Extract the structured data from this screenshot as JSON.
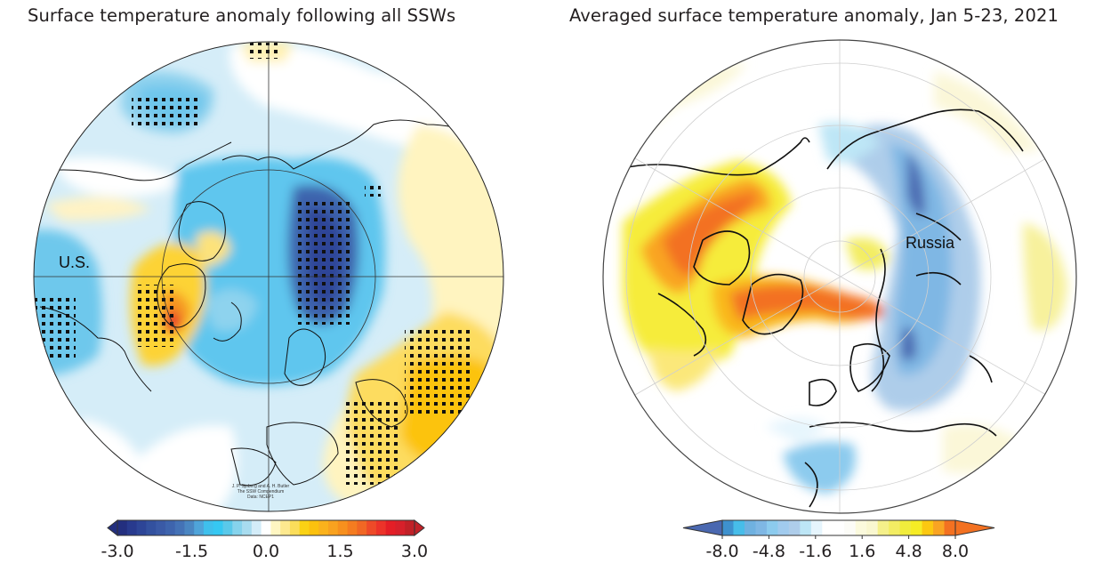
{
  "panels": [
    {
      "title": "Surface temperature anomaly following all SSWs",
      "region_label": "U.S.",
      "credit_lines": [
        "J. P. Sjoberg and A. H. Butler",
        "The SSW Compendium",
        "Data: NCEP1"
      ],
      "colorbar": {
        "ticks": [
          "-3.0",
          "-1.5",
          "0.0",
          "1.5",
          "3.0"
        ],
        "range": [
          -3.0,
          3.0
        ],
        "extend": "both",
        "colors": [
          "#232f7f",
          "#283a8e",
          "#2d4597",
          "#33519f",
          "#3a5aa6",
          "#3e64ad",
          "#4472b6",
          "#4a86c2",
          "#4fa4d9",
          "#3fc0ec",
          "#36c8f2",
          "#5ac9ea",
          "#86d3ec",
          "#a8dcef",
          "#d3ecf8",
          "#ffffff",
          "#fff6c2",
          "#fde98f",
          "#fbdd5a",
          "#fad214",
          "#fcc10e",
          "#fbb21c",
          "#f9a21f",
          "#f7901e",
          "#f57c20",
          "#f16724",
          "#ee4a28",
          "#ec3329",
          "#e41e26",
          "#d7202a",
          "#c12127"
        ]
      }
    },
    {
      "title": "Averaged surface temperature anomaly, Jan 5-23, 2021",
      "region_label": "Russia",
      "colorbar": {
        "ticks": [
          "-8.0",
          "-4.8",
          "-1.6",
          "1.6",
          "4.8",
          "8.0"
        ],
        "range": [
          -8.0,
          8.0
        ],
        "extend": "both",
        "colors": [
          "#3e91ce",
          "#47bde9",
          "#6fb1e0",
          "#7fb7e4",
          "#8ccbee",
          "#a1cbee",
          "#aecdea",
          "#bde6f6",
          "#e6f5fd",
          "#ffffff",
          "#ffffff",
          "#fcfcf7",
          "#fbfadd",
          "#f9f7d0",
          "#f5f08a",
          "#f3ed63",
          "#f1ec3c",
          "#f6ec25",
          "#fcc811",
          "#f9a423",
          "#f37121"
        ],
        "under_color": "#4a68b0",
        "over_color": "#f37121"
      }
    }
  ],
  "chart_data": [
    {
      "type": "heatmap",
      "title": "Surface temperature anomaly following all SSWs",
      "projection": "north polar stereographic",
      "colorbar_ticks": [
        -3.0,
        -1.5,
        0.0,
        1.5,
        3.0
      ],
      "vrange": [
        -3.0,
        3.0
      ],
      "annotations": [
        "U.S.",
        "J. P. Sjoberg and A. H. Butler / The SSW Compendium / Data: NCEP1"
      ],
      "stippling": "statistically significant regions",
      "features": [
        {
          "region": "Eurasia / Siberia",
          "anomaly": "cold",
          "approx_value": -2.5,
          "stippled": true
        },
        {
          "region": "North Pacific",
          "anomaly": "cool",
          "approx_value": -1.0,
          "stippled": true
        },
        {
          "region": "NE Canada / Greenland / Baffin",
          "anomaly": "warm",
          "approx_value": 2.0,
          "stippled": true
        },
        {
          "region": "Middle East / S Asia",
          "anomaly": "warm",
          "approx_value": 1.2,
          "stippled": true
        },
        {
          "region": "Western U.S.",
          "anomaly": "cool",
          "approx_value": -1.0,
          "stippled": true
        }
      ]
    },
    {
      "type": "heatmap",
      "title": "Averaged surface temperature anomaly, Jan 5-23, 2021",
      "projection": "north polar stereographic",
      "colorbar_ticks": [
        -8.0,
        -4.8,
        -1.6,
        1.6,
        4.8,
        8.0
      ],
      "vrange": [
        -8.0,
        8.0
      ],
      "annotations": [
        "Russia"
      ],
      "features": [
        {
          "region": "Canada / Greenland",
          "anomaly": "warm",
          "approx_value": 7.5
        },
        {
          "region": "Barents Sea / N Atlantic",
          "anomaly": "warm",
          "approx_value": 7.0
        },
        {
          "region": "Russia / Siberia",
          "anomaly": "cold",
          "approx_value": -6.0
        },
        {
          "region": "Iberia",
          "anomaly": "cool",
          "approx_value": -3.0
        }
      ]
    }
  ]
}
